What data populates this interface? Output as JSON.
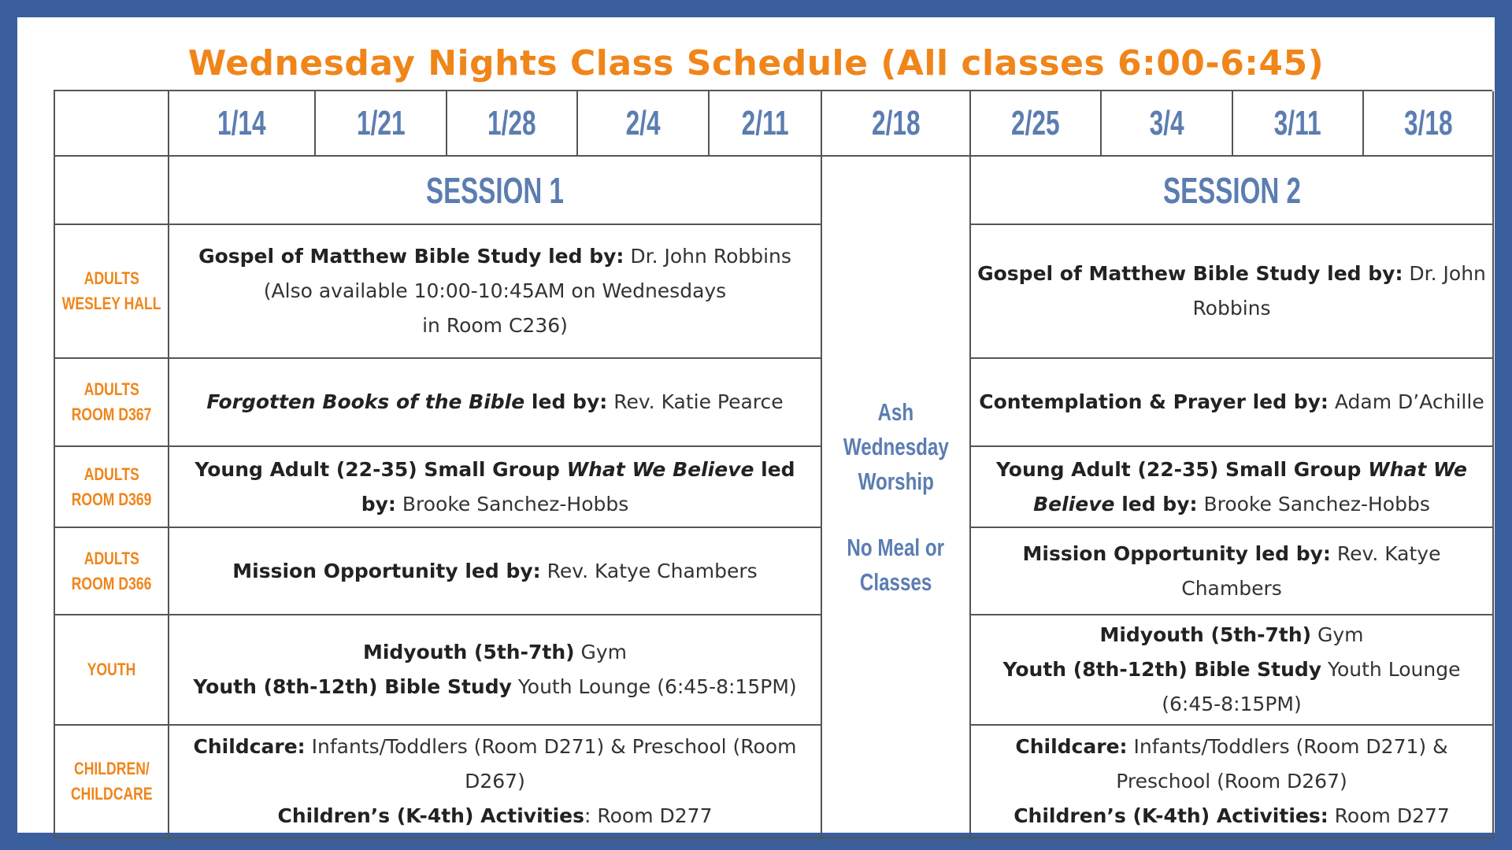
{
  "title": "Wednesday Nights Class Schedule (All classes 6:00-6:45)",
  "dates": [
    "1/14",
    "1/21",
    "1/28",
    "2/4",
    "2/11",
    "2/18",
    "2/25",
    "3/4",
    "3/11",
    "3/18"
  ],
  "session1": "SESSION 1",
  "session2": "SESSION 2",
  "ash": {
    "line1": "Ash",
    "line2": "Wednesday",
    "line3": "Worship",
    "line4": "No Meal or",
    "line5": "Classes"
  },
  "rows": [
    {
      "label1": "ADULTS",
      "label2": "WESLEY HALL",
      "s1": {
        "b1": "Gospel of Matthew Bible Study led by:",
        "t1": " Dr. John Robbins",
        "t2": "(Also available 10:00-10:45AM on Wednesdays",
        "t3": "in Room C236)"
      },
      "s2": {
        "b1": "Gospel of Matthew Bible Study  led by:",
        "t1": " Dr. John Robbins"
      }
    },
    {
      "label1": "ADULTS",
      "label2": "ROOM D367",
      "s1": {
        "i1": "Forgotten Books of the Bible",
        "b1": " led by:",
        "t1": " Rev. Katie Pearce"
      },
      "s2": {
        "b1": "Contemplation & Prayer led by:",
        "t1": " Adam D’Achille"
      }
    },
    {
      "label1": "ADULTS",
      "label2": "ROOM D369",
      "s1": {
        "b1": "Young Adult (22-35) Small Group ",
        "i1": "What We Believe",
        "b2": " led by:",
        "t1": " Brooke Sanchez-Hobbs"
      },
      "s2": {
        "b1": "Young Adult (22-35) Small Group ",
        "i1": "What We Believe",
        "b2": " led by:",
        "t1": " Brooke Sanchez-Hobbs"
      }
    },
    {
      "label1": "ADULTS",
      "label2": "ROOM D366",
      "s1": {
        "b1": "Mission Opportunity led by:",
        "t1": " Rev. Katye Chambers"
      },
      "s2": {
        "b1": "Mission Opportunity led by:",
        "t1": " Rev. Katye Chambers"
      }
    },
    {
      "label1": "YOUTH",
      "s1": {
        "b1": "Midyouth (5th-7th)",
        "t1": " Gym",
        "b2": "Youth (8th-12th) Bible Study",
        "t2": " Youth Lounge (6:45-8:15PM)"
      },
      "s2": {
        "b1": "Midyouth (5th-7th)",
        "t1": " Gym",
        "b2": "Youth (8th-12th) Bible Study",
        "t2": " Youth Lounge (6:45-8:15PM)"
      }
    },
    {
      "label1": "CHILDREN/",
      "label2": "CHILDCARE",
      "s1": {
        "b1": "Childcare:",
        "t1": " Infants/Toddlers (Room D271) & Preschool (Room D267)",
        "b2": "Children’s (K-4th) Activities",
        "t2": ": Room D277"
      },
      "s2": {
        "b1": "Childcare:",
        "t1": " Infants/Toddlers (Room D271) & Preschool (Room D267)",
        "b2": "Children’s (K-4th) Activities:",
        "t2": " Room D277"
      }
    }
  ]
}
